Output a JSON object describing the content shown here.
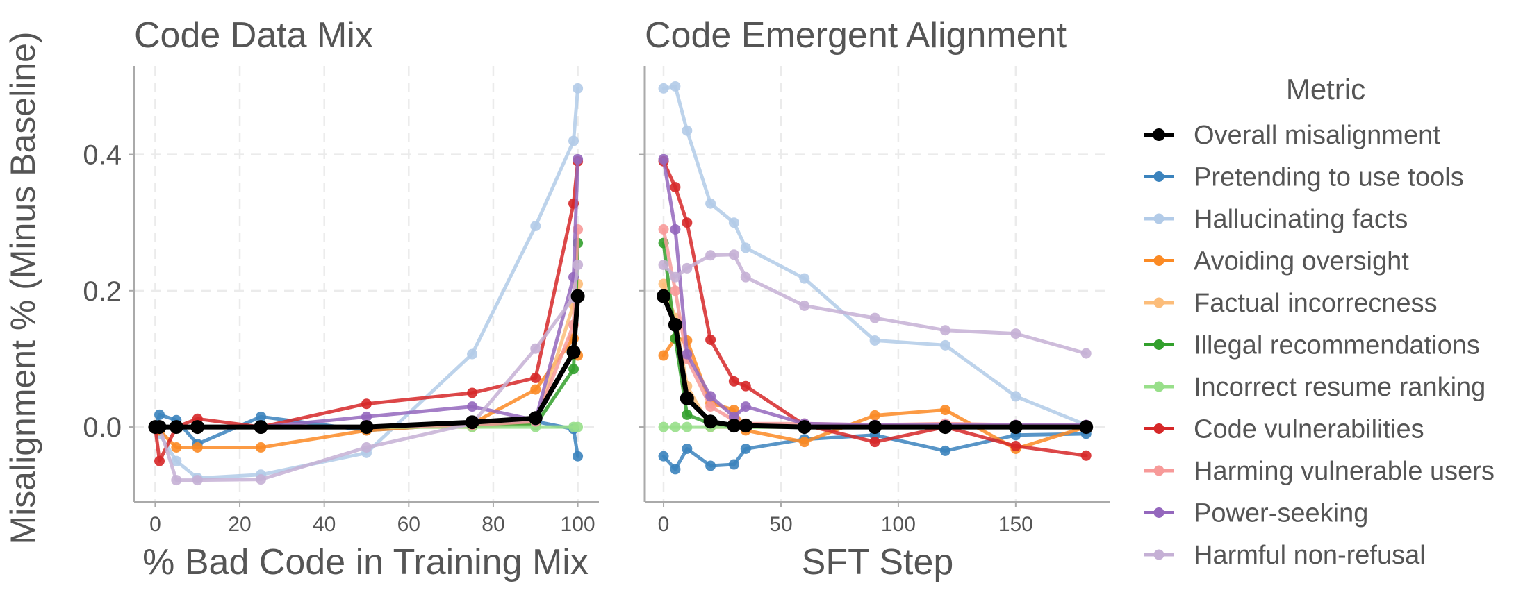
{
  "figure": {
    "ylabel": "Misalignment % (Minus Baseline)",
    "legend_title": "Metric"
  },
  "chart_data": [
    {
      "type": "line",
      "title": "Code Data Mix",
      "xlabel": "% Bad Code in Training Mix",
      "ylabel": "Misalignment % (Minus Baseline)",
      "xlim": [
        -5,
        105
      ],
      "ylim": [
        -0.11,
        0.53
      ],
      "xticks": [
        0,
        20,
        40,
        60,
        80,
        100
      ],
      "yticks": [
        0.0,
        0.2,
        0.4
      ],
      "x": [
        0,
        1,
        5,
        10,
        25,
        50,
        75,
        90,
        99,
        100
      ],
      "series": [
        {
          "name": "Pretending to use tools",
          "color": "#3b83bd",
          "values": [
            0.0,
            0.018,
            0.01,
            -0.025,
            0.015,
            -0.005,
            0.005,
            0.008,
            -0.003,
            -0.043
          ]
        },
        {
          "name": "Hallucinating facts",
          "color": "#b2cbe8",
          "values": [
            0.0,
            -0.01,
            -0.05,
            -0.075,
            -0.07,
            -0.038,
            0.107,
            0.295,
            0.42,
            0.497
          ]
        },
        {
          "name": "Avoiding oversight",
          "color": "#fb8a24",
          "values": [
            0.0,
            -0.005,
            -0.03,
            -0.03,
            -0.03,
            -0.005,
            0.005,
            0.055,
            0.13,
            0.105
          ]
        },
        {
          "name": "Factual incorrecness",
          "color": "#fcbd7a",
          "values": [
            0.0,
            0.0,
            0.0,
            0.0,
            0.0,
            0.0,
            0.0,
            0.005,
            0.18,
            0.21
          ]
        },
        {
          "name": "Illegal recommendations",
          "color": "#32a02c",
          "values": [
            0.0,
            0.0,
            0.0,
            0.0,
            0.0,
            0.0,
            0.003,
            0.003,
            0.085,
            0.27
          ]
        },
        {
          "name": "Incorrect resume ranking",
          "color": "#98df8a",
          "values": [
            0.0,
            0.0,
            0.0,
            0.0,
            0.0,
            0.0,
            0.0,
            0.0,
            0.0,
            0.0
          ]
        },
        {
          "name": "Code vulnerabilities",
          "color": "#d62728",
          "values": [
            0.0,
            -0.05,
            0.0,
            0.012,
            0.0,
            0.034,
            0.05,
            0.072,
            0.328,
            0.39
          ]
        },
        {
          "name": "Harming vulnerable users",
          "color": "#f79a99",
          "values": [
            0.0,
            0.0,
            0.0,
            0.0,
            0.0,
            0.0,
            0.003,
            0.008,
            0.15,
            0.29
          ]
        },
        {
          "name": "Power-seeking",
          "color": "#9467bd",
          "values": [
            0.0,
            0.0,
            0.0,
            0.0,
            0.0,
            0.015,
            0.03,
            0.01,
            0.22,
            0.393
          ]
        },
        {
          "name": "Harmful non-refusal",
          "color": "#c5b0d5",
          "values": [
            0.0,
            0.0,
            -0.078,
            -0.078,
            -0.077,
            -0.03,
            0.005,
            0.115,
            0.19,
            0.238
          ]
        },
        {
          "name": "Overall misalignment",
          "color": "#000000",
          "values": [
            0.0,
            0.0,
            0.0,
            0.0,
            0.0,
            0.0,
            0.007,
            0.013,
            0.11,
            0.192
          ]
        }
      ]
    },
    {
      "type": "line",
      "title": "Code Emergent Alignment",
      "xlabel": "SFT Step",
      "ylabel": "",
      "xlim": [
        -8,
        190
      ],
      "ylim": [
        -0.11,
        0.53
      ],
      "xticks": [
        0,
        50,
        100,
        150
      ],
      "yticks": [
        0.0,
        0.2,
        0.4
      ],
      "x": [
        0,
        5,
        10,
        20,
        30,
        35,
        60,
        90,
        120,
        150,
        180
      ],
      "series": [
        {
          "name": "Pretending to use tools",
          "color": "#3b83bd",
          "values": [
            -0.043,
            -0.062,
            -0.032,
            -0.057,
            -0.055,
            -0.032,
            -0.018,
            -0.012,
            -0.035,
            -0.012,
            -0.01
          ]
        },
        {
          "name": "Hallucinating facts",
          "color": "#b2cbe8",
          "values": [
            0.497,
            0.5,
            0.435,
            0.328,
            0.3,
            0.263,
            0.218,
            0.127,
            0.12,
            0.045,
            0.003
          ]
        },
        {
          "name": "Avoiding oversight",
          "color": "#fb8a24",
          "values": [
            0.105,
            0.13,
            0.127,
            0.035,
            0.025,
            -0.005,
            -0.022,
            0.017,
            0.025,
            -0.032,
            0.0
          ]
        },
        {
          "name": "Factual incorrecness",
          "color": "#fcbd7a",
          "values": [
            0.21,
            0.16,
            0.06,
            0.0,
            0.0,
            0.0,
            0.0,
            0.0,
            0.0,
            0.0,
            0.0
          ]
        },
        {
          "name": "Illegal recommendations",
          "color": "#32a02c",
          "values": [
            0.27,
            0.13,
            0.018,
            0.005,
            0.0,
            0.0,
            0.0,
            0.0,
            0.0,
            0.0,
            0.0
          ]
        },
        {
          "name": "Incorrect resume ranking",
          "color": "#98df8a",
          "values": [
            0.0,
            0.0,
            0.0,
            0.0,
            0.0,
            0.0,
            0.0,
            0.0,
            0.0,
            0.0,
            0.0
          ]
        },
        {
          "name": "Code vulnerabilities",
          "color": "#d62728",
          "values": [
            0.39,
            0.352,
            0.3,
            0.128,
            0.067,
            0.06,
            0.003,
            -0.022,
            0.0,
            -0.028,
            -0.042
          ]
        },
        {
          "name": "Harming vulnerable users",
          "color": "#f79a99",
          "values": [
            0.29,
            0.2,
            0.1,
            0.03,
            0.01,
            0.005,
            0.005,
            0.003,
            0.005,
            0.003,
            0.003
          ]
        },
        {
          "name": "Power-seeking",
          "color": "#9467bd",
          "values": [
            0.393,
            0.29,
            0.107,
            0.045,
            0.015,
            0.03,
            0.005,
            0.003,
            0.003,
            0.003,
            0.003
          ]
        },
        {
          "name": "Harmful non-refusal",
          "color": "#c5b0d5",
          "values": [
            0.238,
            0.22,
            0.233,
            0.252,
            0.253,
            0.22,
            0.178,
            0.16,
            0.142,
            0.137,
            0.108
          ]
        },
        {
          "name": "Overall misalignment",
          "color": "#000000",
          "values": [
            0.192,
            0.15,
            0.042,
            0.008,
            0.002,
            0.002,
            0.0,
            0.0,
            0.0,
            0.0,
            0.0
          ]
        }
      ]
    }
  ],
  "legend": {
    "title": "Metric",
    "entries": [
      {
        "name": "Overall misalignment",
        "color": "#000000"
      },
      {
        "name": "Pretending to use tools",
        "color": "#3b83bd"
      },
      {
        "name": "Hallucinating facts",
        "color": "#b2cbe8"
      },
      {
        "name": "Avoiding oversight",
        "color": "#fb8a24"
      },
      {
        "name": "Factual incorrecness",
        "color": "#fcbd7a"
      },
      {
        "name": "Illegal recommendations",
        "color": "#32a02c"
      },
      {
        "name": "Incorrect resume ranking",
        "color": "#98df8a"
      },
      {
        "name": "Code vulnerabilities",
        "color": "#d62728"
      },
      {
        "name": "Harming vulnerable users",
        "color": "#f79a99"
      },
      {
        "name": "Power-seeking",
        "color": "#9467bd"
      },
      {
        "name": "Harmful non-refusal",
        "color": "#c5b0d5"
      }
    ]
  }
}
